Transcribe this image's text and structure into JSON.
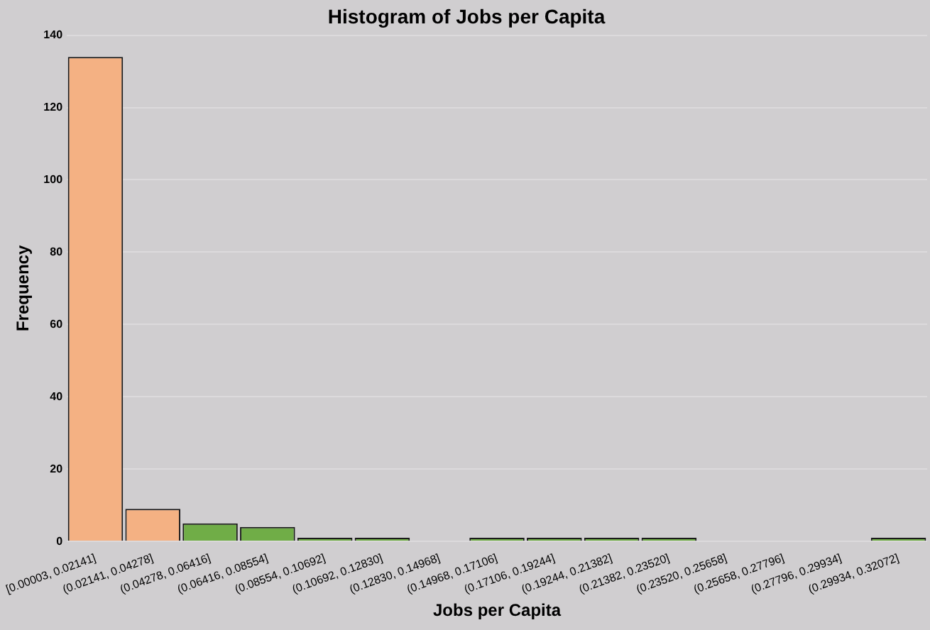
{
  "chart_data": {
    "type": "bar",
    "title": "Histogram of Jobs per Capita",
    "xlabel": "Jobs per Capita",
    "ylabel": "Frequency",
    "categories": [
      "[0.00003, 0.02141]",
      "(0.02141, 0.04278]",
      "(0.04278, 0.06416]",
      "(0.06416, 0.08554]",
      "(0.08554, 0.10692]",
      "(0.10692, 0.12830]",
      "(0.12830, 0.14968]",
      "(0.14968, 0.17106]",
      "(0.17106, 0.19244]",
      "(0.19244, 0.21382]",
      "(0.21382, 0.23520]",
      "(0.23520, 0.25658]",
      "(0.25658, 0.27796]",
      "(0.27796, 0.29934]",
      "(0.29934, 0.32072]"
    ],
    "values": [
      134,
      9,
      5,
      4,
      1,
      1,
      0,
      1,
      1,
      1,
      1,
      0,
      0,
      0,
      1
    ],
    "colors": [
      "#f4b183",
      "#f4b183",
      "#70ad47",
      "#70ad47",
      "#70ad47",
      "#70ad47",
      "#70ad47",
      "#70ad47",
      "#70ad47",
      "#70ad47",
      "#70ad47",
      "#70ad47",
      "#70ad47",
      "#70ad47",
      "#70ad47"
    ],
    "ylim": [
      0,
      140
    ],
    "yticks": [
      0,
      20,
      40,
      60,
      80,
      100,
      120,
      140
    ],
    "grid": "y",
    "legend": false
  }
}
